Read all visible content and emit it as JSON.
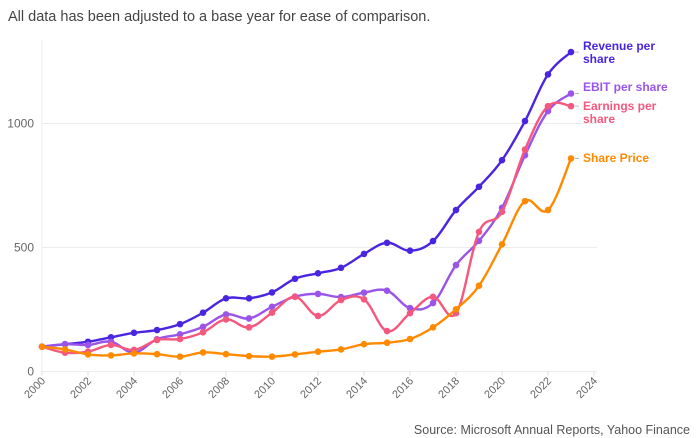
{
  "subtitle": "All data has been adjusted to a base year for ease of comparison.",
  "source": "Source: Microsoft Annual Reports, Yahoo Finance",
  "chart_data": {
    "type": "line",
    "title": "",
    "xlabel": "",
    "ylabel": "",
    "xlim": [
      2000,
      2024
    ],
    "ylim": [
      0,
      1300
    ],
    "grid": true,
    "legend": "direct labels at line ends (right)",
    "x_ticks": [
      "2000",
      "2002",
      "2004",
      "2006",
      "2008",
      "2010",
      "2012",
      "2014",
      "2016",
      "2018",
      "2020",
      "2022",
      "2024"
    ],
    "y_ticks": [
      "0",
      "500",
      "1000"
    ],
    "x": [
      2000,
      2001,
      2002,
      2003,
      2004,
      2005,
      2006,
      2007,
      2008,
      2009,
      2010,
      2011,
      2012,
      2013,
      2014,
      2015,
      2016,
      2017,
      2018,
      2019,
      2020,
      2021,
      2022,
      2023
    ],
    "series": [
      {
        "name": "Revenue per share",
        "label_lines": [
          "Revenue per",
          "share"
        ],
        "color": "#4a25e0",
        "values": [
          100,
          110,
          120,
          138,
          156,
          167,
          191,
          237,
          295,
          295,
          319,
          374,
          396,
          418,
          474,
          519,
          487,
          526,
          651,
          745,
          852,
          1010,
          1198,
          1288
        ]
      },
      {
        "name": "EBIT per share",
        "label_lines": [
          "EBIT per share"
        ],
        "color": "#9a55e8",
        "values": [
          100,
          110,
          107,
          120,
          76,
          130,
          150,
          180,
          230,
          214,
          261,
          302,
          313,
          300,
          318,
          326,
          256,
          276,
          429,
          527,
          660,
          872,
          1050,
          1121
        ]
      },
      {
        "name": "Earnings per share",
        "label_lines": [
          "Earnings per",
          "share"
        ],
        "color": "#f5587f",
        "values": [
          100,
          76,
          80,
          107,
          87,
          127,
          131,
          158,
          210,
          178,
          237,
          301,
          224,
          288,
          291,
          163,
          235,
          301,
          235,
          563,
          644,
          895,
          1070,
          1070
        ]
      },
      {
        "name": "Share Price",
        "label_lines": [
          "Share Price"
        ],
        "color": "#ff8a00",
        "values": [
          100,
          89,
          69,
          65,
          73,
          70,
          60,
          77,
          70,
          62,
          60,
          69,
          80,
          89,
          110,
          116,
          131,
          178,
          251,
          346,
          513,
          687,
          651,
          859
        ]
      }
    ]
  }
}
